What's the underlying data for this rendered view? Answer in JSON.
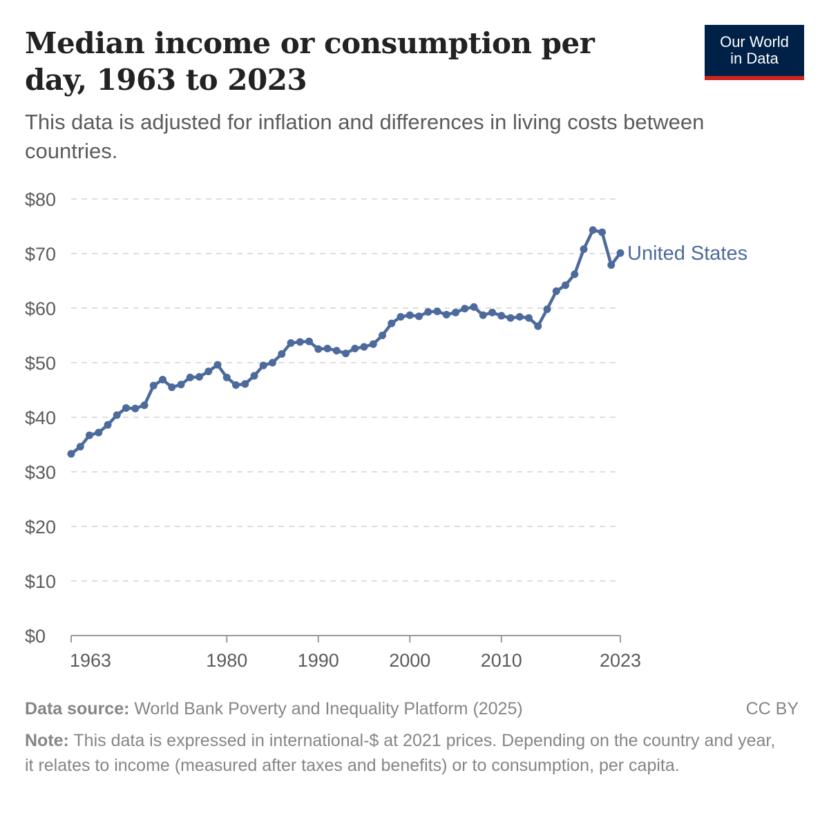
{
  "header": {
    "title": "Median income or consumption per day, 1963 to 2023",
    "subtitle": "This data is adjusted for inflation and differences in living costs between countries."
  },
  "logo": {
    "line1": "Our World",
    "line2": "in Data"
  },
  "footer": {
    "source_label": "Data source:",
    "source_text": "World Bank Poverty and Inequality Platform (2025)",
    "license": "CC BY",
    "note_label": "Note:",
    "note_text": "This data is expressed in international-$ at 2021 prices. Depending on the country and year, it relates to income (measured after taxes and benefits) or to consumption, per capita."
  },
  "colors": {
    "series": "#4c6a9c",
    "grid": "#dddddd",
    "axis": "#999999",
    "text": "#5b5b5b"
  },
  "chart_data": {
    "type": "line",
    "title": "Median income or consumption per day, 1963 to 2023",
    "xlabel": "",
    "ylabel": "",
    "xlim": [
      1963,
      2023
    ],
    "ylim": [
      0,
      80
    ],
    "x_ticks": [
      1963,
      1980,
      1990,
      2000,
      2010,
      2023
    ],
    "y_ticks": [
      0,
      10,
      20,
      30,
      40,
      50,
      60,
      70,
      80
    ],
    "y_tick_labels": [
      "$0",
      "$10",
      "$20",
      "$30",
      "$40",
      "$50",
      "$60",
      "$70",
      "$80"
    ],
    "grid": true,
    "series": [
      {
        "name": "United States",
        "x": [
          1963,
          1964,
          1965,
          1966,
          1967,
          1968,
          1969,
          1970,
          1971,
          1972,
          1973,
          1974,
          1975,
          1976,
          1977,
          1978,
          1979,
          1980,
          1981,
          1982,
          1983,
          1984,
          1985,
          1986,
          1987,
          1988,
          1989,
          1990,
          1991,
          1992,
          1993,
          1994,
          1995,
          1996,
          1997,
          1998,
          1999,
          2000,
          2001,
          2002,
          2003,
          2004,
          2005,
          2006,
          2007,
          2008,
          2009,
          2010,
          2011,
          2012,
          2013,
          2014,
          2015,
          2016,
          2017,
          2018,
          2019,
          2020,
          2021,
          2022,
          2023
        ],
        "values": [
          33.3,
          34.6,
          36.7,
          37.2,
          38.6,
          40.4,
          41.7,
          41.6,
          42.2,
          45.8,
          46.9,
          45.5,
          46.0,
          47.3,
          47.4,
          48.4,
          49.6,
          47.3,
          45.9,
          46.1,
          47.6,
          49.5,
          50.0,
          51.6,
          53.6,
          53.8,
          53.9,
          52.5,
          52.6,
          52.2,
          51.7,
          52.6,
          52.9,
          53.4,
          55.0,
          57.2,
          58.4,
          58.7,
          58.5,
          59.3,
          59.4,
          58.8,
          59.2,
          59.9,
          60.2,
          58.7,
          59.2,
          58.6,
          58.2,
          58.4,
          58.2,
          56.7,
          59.8,
          63.1,
          64.2,
          66.2,
          70.8,
          74.3,
          73.9,
          67.9,
          70.1
        ]
      }
    ]
  }
}
